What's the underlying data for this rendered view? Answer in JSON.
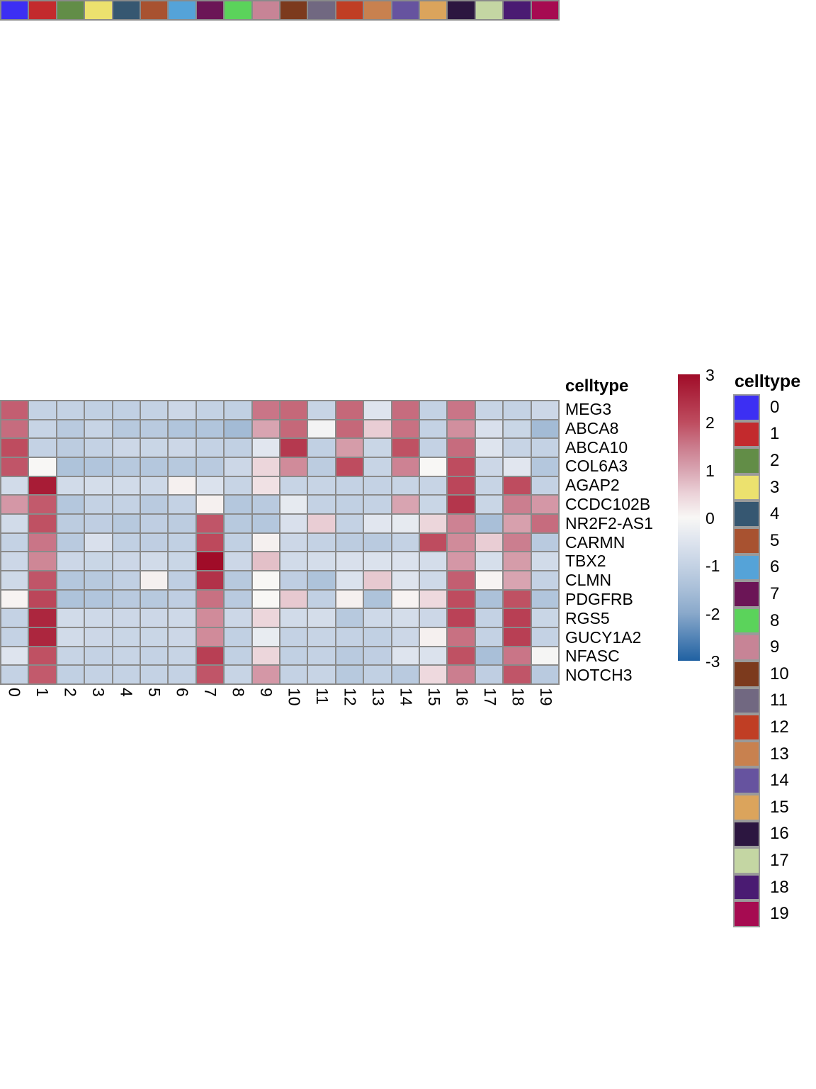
{
  "chart_data": {
    "type": "heatmap",
    "title": "",
    "rows": [
      "MEG3",
      "ABCA8",
      "ABCA10",
      "COL6A3",
      "AGAP2",
      "CCDC102B",
      "NR2F2-AS1",
      "CARMN",
      "TBX2",
      "CLMN",
      "PDGFRB",
      "RGS5",
      "GUCY1A2",
      "NFASC",
      "NOTCH3"
    ],
    "columns": [
      "0",
      "1",
      "2",
      "3",
      "4",
      "5",
      "6",
      "7",
      "8",
      "9",
      "10",
      "11",
      "12",
      "13",
      "14",
      "15",
      "16",
      "17",
      "18",
      "19"
    ],
    "values": [
      [
        1.8,
        -1.0,
        -1.0,
        -1.05,
        -1.05,
        -1.0,
        -0.85,
        -1.0,
        -1.05,
        1.55,
        1.7,
        -0.95,
        1.7,
        -0.5,
        1.65,
        -1.0,
        1.55,
        -0.95,
        -1.0,
        -0.85
      ],
      [
        1.65,
        -0.95,
        -1.2,
        -0.95,
        -1.25,
        -1.2,
        -1.35,
        -1.35,
        -1.6,
        1.0,
        1.7,
        -0.1,
        1.7,
        0.55,
        1.6,
        -1.0,
        1.25,
        -0.6,
        -0.9,
        -1.6
      ],
      [
        2.0,
        -1.0,
        -1.15,
        -1.0,
        -0.85,
        -0.9,
        -0.85,
        -1.0,
        -1.05,
        -0.45,
        2.3,
        -1.05,
        1.1,
        -0.9,
        1.95,
        -1.0,
        1.65,
        -0.5,
        -0.95,
        -1.0
      ],
      [
        1.9,
        0.0,
        -1.4,
        -1.35,
        -1.25,
        -1.3,
        -1.25,
        -1.2,
        -0.85,
        0.45,
        1.3,
        -1.15,
        2.0,
        -0.95,
        1.4,
        0.0,
        2.0,
        -0.85,
        -0.45,
        -1.3
      ],
      [
        -0.75,
        2.75,
        -0.75,
        -0.7,
        -0.75,
        -0.8,
        0.1,
        -0.55,
        -0.95,
        0.3,
        -0.95,
        -0.95,
        -1.0,
        -1.0,
        -0.95,
        -0.95,
        2.1,
        -0.95,
        2.0,
        -1.0
      ],
      [
        1.15,
        1.85,
        -1.3,
        -1.0,
        -1.0,
        -1.2,
        -1.0,
        0.1,
        -1.3,
        -1.2,
        -0.35,
        -1.0,
        -1.05,
        -1.0,
        1.0,
        -0.9,
        2.35,
        -0.9,
        1.45,
        1.15
      ],
      [
        -0.75,
        1.95,
        -1.15,
        -1.1,
        -1.25,
        -1.1,
        -1.15,
        1.9,
        -1.25,
        -1.3,
        -0.6,
        0.55,
        -1.0,
        -0.45,
        -0.35,
        0.45,
        1.4,
        -1.5,
        1.05,
        1.65
      ],
      [
        -1.0,
        1.55,
        -1.2,
        -0.6,
        -1.05,
        -1.1,
        -1.05,
        2.05,
        -1.05,
        0.1,
        -0.85,
        -1.0,
        -1.15,
        -1.2,
        -1.0,
        2.0,
        1.3,
        0.55,
        1.45,
        -1.2
      ],
      [
        -0.85,
        1.35,
        -0.85,
        -0.9,
        -0.85,
        -0.75,
        -0.9,
        3.0,
        -0.85,
        0.7,
        -0.75,
        -0.7,
        -0.6,
        -0.55,
        -0.55,
        -0.7,
        1.15,
        -0.65,
        1.1,
        -0.75
      ],
      [
        -0.8,
        1.9,
        -1.3,
        -1.25,
        -1.05,
        0.1,
        -1.1,
        2.4,
        -1.25,
        0.0,
        -1.1,
        -1.4,
        -0.55,
        0.6,
        -0.5,
        -0.8,
        1.8,
        0.05,
        1.0,
        -1.0
      ],
      [
        0.05,
        2.1,
        -1.4,
        -1.35,
        -1.2,
        -1.25,
        -1.1,
        1.6,
        -1.2,
        0.0,
        0.6,
        -1.05,
        0.1,
        -1.4,
        0.05,
        0.4,
        2.0,
        -1.45,
        1.95,
        -1.35
      ],
      [
        -1.0,
        2.6,
        -0.75,
        -0.8,
        -0.85,
        -0.85,
        -0.8,
        1.3,
        -0.85,
        0.45,
        -0.75,
        -0.7,
        -1.25,
        -0.8,
        -0.7,
        -0.85,
        2.15,
        -1.0,
        2.2,
        -0.9
      ],
      [
        -1.0,
        2.6,
        -0.75,
        -0.85,
        -0.9,
        -0.9,
        -0.85,
        1.3,
        -1.05,
        -0.3,
        -1.0,
        -0.95,
        -1.0,
        -1.05,
        -0.85,
        0.1,
        1.6,
        -1.0,
        2.2,
        -1.0
      ],
      [
        -0.5,
        1.95,
        -0.95,
        -1.0,
        -0.95,
        -1.0,
        -0.95,
        2.2,
        -1.05,
        0.45,
        -1.05,
        -1.0,
        -1.2,
        -1.1,
        -0.5,
        -0.55,
        1.95,
        -1.5,
        1.55,
        -0.05
      ],
      [
        -1.0,
        1.85,
        -1.05,
        -1.0,
        -1.0,
        -1.0,
        -1.0,
        1.9,
        -0.95,
        1.15,
        -1.0,
        -0.95,
        -1.25,
        -1.05,
        -1.2,
        0.4,
        1.45,
        -1.1,
        1.9,
        -1.2
      ]
    ],
    "value_range": [
      -3,
      3
    ],
    "grid_color": "#8a8a8a",
    "color_stops": [
      {
        "v": -3,
        "c": "#2061A2"
      },
      {
        "v": -2,
        "c": "#8AA9CB"
      },
      {
        "v": -1.5,
        "c": "#A9BFD8"
      },
      {
        "v": -1,
        "c": "#C4D2E4"
      },
      {
        "v": -0.5,
        "c": "#DEE4EE"
      },
      {
        "v": 0,
        "c": "#F8F7F5"
      },
      {
        "v": 0.5,
        "c": "#EBD2D8"
      },
      {
        "v": 1,
        "c": "#D8A4B1"
      },
      {
        "v": 1.5,
        "c": "#CA7A8B"
      },
      {
        "v": 2,
        "c": "#BE4C5F"
      },
      {
        "v": 3,
        "c": "#A00C28"
      }
    ],
    "column_annotation": {
      "title": "celltype",
      "colors": [
        "#3C2FF3",
        "#C32A2D",
        "#628D47",
        "#ECE16E",
        "#365771",
        "#A85230",
        "#55A3D8",
        "#6B1556",
        "#5BD35B",
        "#C78496",
        "#7C3A1D",
        "#716881",
        "#C03E24",
        "#C8814F",
        "#66539F",
        "#DBA45C",
        "#2C1640",
        "#C4D6A3",
        "#4A1B72",
        "#A60B51"
      ]
    },
    "colorbar": {
      "ticks": [
        "3",
        "2",
        "1",
        "0",
        "-1",
        "-2",
        "-3"
      ],
      "tick_values": [
        3,
        2,
        1,
        0,
        -1,
        -2,
        -3
      ]
    },
    "legend": {
      "title": "celltype",
      "items": [
        {
          "label": "0",
          "color": "#3C2FF3"
        },
        {
          "label": "1",
          "color": "#C32A2D"
        },
        {
          "label": "2",
          "color": "#628D47"
        },
        {
          "label": "3",
          "color": "#ECE16E"
        },
        {
          "label": "4",
          "color": "#365771"
        },
        {
          "label": "5",
          "color": "#A85230"
        },
        {
          "label": "6",
          "color": "#55A3D8"
        },
        {
          "label": "7",
          "color": "#6B1556"
        },
        {
          "label": "8",
          "color": "#5BD35B"
        },
        {
          "label": "9",
          "color": "#C78496"
        },
        {
          "label": "10",
          "color": "#7C3A1D"
        },
        {
          "label": "11",
          "color": "#716881"
        },
        {
          "label": "12",
          "color": "#C03E24"
        },
        {
          "label": "13",
          "color": "#C8814F"
        },
        {
          "label": "14",
          "color": "#66539F"
        },
        {
          "label": "15",
          "color": "#DBA45C"
        },
        {
          "label": "16",
          "color": "#2C1640"
        },
        {
          "label": "17",
          "color": "#C4D6A3"
        },
        {
          "label": "18",
          "color": "#4A1B72"
        },
        {
          "label": "19",
          "color": "#A60B51"
        }
      ]
    }
  }
}
